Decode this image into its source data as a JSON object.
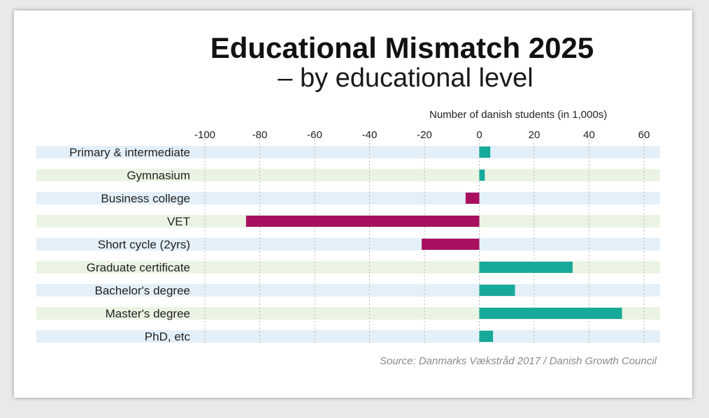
{
  "title": "Educational Mismatch 2025",
  "subtitle": "– by educational level",
  "source": "Source: Danmarks Vækstråd 2017 / Danish Growth Council",
  "colors": {
    "positive": "#17a99a",
    "negative": "#a8105f",
    "stripe_a": "#e3f0f9",
    "stripe_b": "#ebf4e2",
    "grid": "#b5b5b5"
  },
  "chart_data": {
    "type": "bar",
    "orientation": "horizontal",
    "title": "Educational Mismatch 2025",
    "subtitle": "– by educational level",
    "xlabel": "Number of danish students (in 1,000s)",
    "ylabel": "",
    "xlim": [
      -100,
      60
    ],
    "xticks": [
      -100,
      -80,
      -60,
      -40,
      -20,
      0,
      20,
      40,
      60
    ],
    "grid": "vertical dashed",
    "categories": [
      "Primary & intermediate",
      "Gymnasium",
      "Business college",
      "VET",
      "Short cycle (2yrs)",
      "Graduate certificate",
      "Bachelor's degree",
      "Master's degree",
      "PhD, etc"
    ],
    "values": [
      4,
      2,
      -5,
      -85,
      -21,
      34,
      13,
      52,
      5
    ]
  }
}
